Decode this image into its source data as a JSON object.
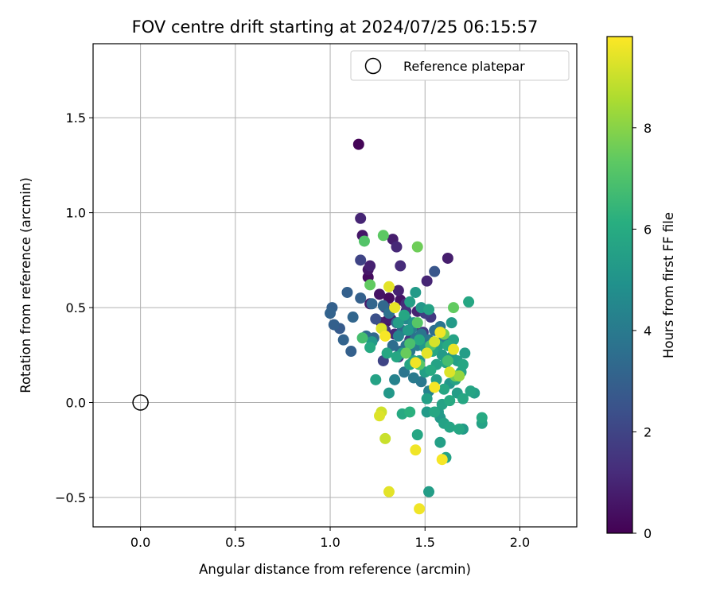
{
  "chart_data": {
    "type": "scatter",
    "title": "FOV centre drift starting at 2024/07/25 06:15:57",
    "xlabel": "Angular distance from reference (arcmin)",
    "ylabel": "Rotation from reference (arcmin)",
    "xlim": [
      -0.25,
      2.3
    ],
    "ylim": [
      -0.655,
      1.89
    ],
    "xticks": [
      0.0,
      0.5,
      1.0,
      1.5,
      2.0
    ],
    "xtick_labels": [
      "0.0",
      "0.5",
      "1.0",
      "1.5",
      "2.0"
    ],
    "yticks": [
      -0.5,
      0.0,
      0.5,
      1.0,
      1.5
    ],
    "ytick_labels": [
      "−0.5",
      "0.0",
      "0.5",
      "1.0",
      "1.5"
    ],
    "grid": true,
    "legend": {
      "placement": "top-right",
      "entries": [
        "Reference platepar"
      ]
    },
    "colorbar": {
      "label": "Hours from first FF file",
      "colormap": "viridis",
      "range": [
        0,
        9.8
      ],
      "ticks": [
        0,
        2,
        4,
        6,
        8
      ],
      "tick_labels": [
        "0",
        "2",
        "4",
        "6",
        "8"
      ]
    },
    "reference_point": {
      "x": 0.0,
      "y": 0.0
    },
    "series": [
      {
        "points": [
          {
            "x": 1.15,
            "y": 1.36,
            "c": 0.1
          },
          {
            "x": 1.16,
            "y": 0.97,
            "c": 1.0
          },
          {
            "x": 1.17,
            "y": 0.88,
            "c": 0.6
          },
          {
            "x": 1.33,
            "y": 0.86,
            "c": 0.8
          },
          {
            "x": 1.35,
            "y": 0.82,
            "c": 1.1
          },
          {
            "x": 1.16,
            "y": 0.75,
            "c": 2.0
          },
          {
            "x": 1.21,
            "y": 0.72,
            "c": 0.9
          },
          {
            "x": 1.2,
            "y": 0.7,
            "c": 0.6
          },
          {
            "x": 1.37,
            "y": 0.72,
            "c": 1.2
          },
          {
            "x": 1.2,
            "y": 0.66,
            "c": 0.3
          },
          {
            "x": 1.51,
            "y": 0.64,
            "c": 1.0
          },
          {
            "x": 1.62,
            "y": 0.76,
            "c": 0.8
          },
          {
            "x": 1.55,
            "y": 0.69,
            "c": 2.6
          },
          {
            "x": 1.26,
            "y": 0.57,
            "c": 0.5
          },
          {
            "x": 1.36,
            "y": 0.59,
            "c": 0.9
          },
          {
            "x": 1.31,
            "y": 0.55,
            "c": 0.3
          },
          {
            "x": 1.21,
            "y": 0.52,
            "c": 0.7
          },
          {
            "x": 1.29,
            "y": 0.5,
            "c": 1.5
          },
          {
            "x": 1.37,
            "y": 0.54,
            "c": 0.5
          },
          {
            "x": 1.4,
            "y": 0.52,
            "c": 1.2
          },
          {
            "x": 1.3,
            "y": 0.43,
            "c": 0.5
          },
          {
            "x": 1.32,
            "y": 0.44,
            "c": 0.8
          },
          {
            "x": 1.4,
            "y": 0.48,
            "c": 1.4
          },
          {
            "x": 1.46,
            "y": 0.48,
            "c": 0.9
          },
          {
            "x": 1.44,
            "y": 0.4,
            "c": 1.3
          },
          {
            "x": 1.5,
            "y": 0.47,
            "c": 1.8
          },
          {
            "x": 1.53,
            "y": 0.45,
            "c": 1.6
          },
          {
            "x": 1.27,
            "y": 0.42,
            "c": 0.8
          },
          {
            "x": 1.24,
            "y": 0.44,
            "c": 2.4
          },
          {
            "x": 1.29,
            "y": 0.38,
            "c": 1.4
          },
          {
            "x": 1.34,
            "y": 0.36,
            "c": 1.1
          },
          {
            "x": 1.42,
            "y": 0.33,
            "c": 1.6
          },
          {
            "x": 1.36,
            "y": 0.24,
            "c": 1.5
          },
          {
            "x": 1.28,
            "y": 0.22,
            "c": 2.0
          },
          {
            "x": 1.49,
            "y": 0.37,
            "c": 1.7
          },
          {
            "x": 1.01,
            "y": 0.5,
            "c": 3.0
          },
          {
            "x": 1.0,
            "y": 0.47,
            "c": 3.1
          },
          {
            "x": 1.09,
            "y": 0.58,
            "c": 3.0
          },
          {
            "x": 1.02,
            "y": 0.41,
            "c": 3.0
          },
          {
            "x": 1.05,
            "y": 0.39,
            "c": 2.8
          },
          {
            "x": 1.07,
            "y": 0.33,
            "c": 3.1
          },
          {
            "x": 1.11,
            "y": 0.27,
            "c": 3.0
          },
          {
            "x": 1.12,
            "y": 0.45,
            "c": 3.2
          },
          {
            "x": 1.16,
            "y": 0.55,
            "c": 3.0
          },
          {
            "x": 1.22,
            "y": 0.52,
            "c": 3.2
          },
          {
            "x": 1.19,
            "y": 0.35,
            "c": 3.4
          },
          {
            "x": 1.23,
            "y": 0.34,
            "c": 3.3
          },
          {
            "x": 1.28,
            "y": 0.51,
            "c": 3.3
          },
          {
            "x": 1.31,
            "y": 0.47,
            "c": 3.6
          },
          {
            "x": 1.35,
            "y": 0.42,
            "c": 3.4
          },
          {
            "x": 1.38,
            "y": 0.38,
            "c": 3.3
          },
          {
            "x": 1.33,
            "y": 0.3,
            "c": 3.5
          },
          {
            "x": 1.37,
            "y": 0.27,
            "c": 3.2
          },
          {
            "x": 1.4,
            "y": 0.3,
            "c": 3.7
          },
          {
            "x": 1.42,
            "y": 0.27,
            "c": 3.9
          },
          {
            "x": 1.45,
            "y": 0.34,
            "c": 3.6
          },
          {
            "x": 1.48,
            "y": 0.36,
            "c": 3.8
          },
          {
            "x": 1.52,
            "y": 0.33,
            "c": 3.9
          },
          {
            "x": 1.55,
            "y": 0.38,
            "c": 3.5
          },
          {
            "x": 1.58,
            "y": 0.4,
            "c": 3.8
          },
          {
            "x": 1.6,
            "y": 0.34,
            "c": 4.2
          },
          {
            "x": 1.46,
            "y": 0.3,
            "c": 4.2
          },
          {
            "x": 1.39,
            "y": 0.16,
            "c": 3.8
          },
          {
            "x": 1.44,
            "y": 0.13,
            "c": 4.0
          },
          {
            "x": 1.48,
            "y": 0.11,
            "c": 3.9
          },
          {
            "x": 1.52,
            "y": 0.06,
            "c": 4.3
          },
          {
            "x": 1.34,
            "y": 0.12,
            "c": 4.3
          },
          {
            "x": 1.36,
            "y": 0.35,
            "c": 4.4
          },
          {
            "x": 1.43,
            "y": 0.39,
            "c": 4.1
          },
          {
            "x": 1.4,
            "y": 0.44,
            "c": 4.6
          },
          {
            "x": 1.45,
            "y": 0.58,
            "c": 5.3
          },
          {
            "x": 1.42,
            "y": 0.53,
            "c": 5.5
          },
          {
            "x": 1.48,
            "y": 0.5,
            "c": 5.2
          },
          {
            "x": 1.52,
            "y": 0.49,
            "c": 5.6
          },
          {
            "x": 1.39,
            "y": 0.46,
            "c": 5.8
          },
          {
            "x": 1.36,
            "y": 0.42,
            "c": 5.4
          },
          {
            "x": 1.44,
            "y": 0.42,
            "c": 5.0
          },
          {
            "x": 1.41,
            "y": 0.38,
            "c": 5.3
          },
          {
            "x": 1.47,
            "y": 0.33,
            "c": 5.9
          },
          {
            "x": 1.5,
            "y": 0.29,
            "c": 5.2
          },
          {
            "x": 1.54,
            "y": 0.27,
            "c": 5.8
          },
          {
            "x": 1.57,
            "y": 0.3,
            "c": 5.5
          },
          {
            "x": 1.59,
            "y": 0.25,
            "c": 5.3
          },
          {
            "x": 1.56,
            "y": 0.2,
            "c": 5.6
          },
          {
            "x": 1.61,
            "y": 0.21,
            "c": 5.8
          },
          {
            "x": 1.64,
            "y": 0.24,
            "c": 5.1
          },
          {
            "x": 1.67,
            "y": 0.22,
            "c": 5.5
          },
          {
            "x": 1.7,
            "y": 0.2,
            "c": 5.8
          },
          {
            "x": 1.71,
            "y": 0.26,
            "c": 5.4
          },
          {
            "x": 1.69,
            "y": 0.16,
            "c": 5.7
          },
          {
            "x": 1.66,
            "y": 0.12,
            "c": 5.6
          },
          {
            "x": 1.63,
            "y": 0.1,
            "c": 5.1
          },
          {
            "x": 1.6,
            "y": 0.07,
            "c": 5.8
          },
          {
            "x": 1.56,
            "y": 0.12,
            "c": 5.4
          },
          {
            "x": 1.53,
            "y": 0.17,
            "c": 5.9
          },
          {
            "x": 1.5,
            "y": 0.16,
            "c": 5.5
          },
          {
            "x": 1.47,
            "y": 0.22,
            "c": 5.2
          },
          {
            "x": 1.44,
            "y": 0.22,
            "c": 5.6
          },
          {
            "x": 1.42,
            "y": 0.2,
            "c": 5.7
          },
          {
            "x": 1.38,
            "y": 0.26,
            "c": 5.4
          },
          {
            "x": 1.35,
            "y": 0.24,
            "c": 5.8
          },
          {
            "x": 1.73,
            "y": 0.53,
            "c": 5.8
          },
          {
            "x": 1.64,
            "y": 0.42,
            "c": 5.3
          },
          {
            "x": 1.65,
            "y": 0.33,
            "c": 5.6
          },
          {
            "x": 1.62,
            "y": 0.3,
            "c": 5.9
          },
          {
            "x": 1.74,
            "y": 0.06,
            "c": 5.7
          },
          {
            "x": 1.76,
            "y": 0.05,
            "c": 5.5
          },
          {
            "x": 1.7,
            "y": 0.02,
            "c": 5.8
          },
          {
            "x": 1.67,
            "y": 0.05,
            "c": 5.4
          },
          {
            "x": 1.63,
            "y": 0.01,
            "c": 5.9
          },
          {
            "x": 1.59,
            "y": -0.01,
            "c": 5.6
          },
          {
            "x": 1.57,
            "y": -0.05,
            "c": 5.3
          },
          {
            "x": 1.51,
            "y": 0.02,
            "c": 5.5
          },
          {
            "x": 1.55,
            "y": -0.05,
            "c": 5.8
          },
          {
            "x": 1.58,
            "y": -0.08,
            "c": 5.2
          },
          {
            "x": 1.6,
            "y": -0.11,
            "c": 5.6
          },
          {
            "x": 1.8,
            "y": -0.08,
            "c": 5.9
          },
          {
            "x": 1.8,
            "y": -0.11,
            "c": 5.6
          },
          {
            "x": 1.68,
            "y": -0.14,
            "c": 5.8
          },
          {
            "x": 1.7,
            "y": -0.14,
            "c": 5.3
          },
          {
            "x": 1.63,
            "y": -0.13,
            "c": 5.7
          },
          {
            "x": 1.58,
            "y": -0.21,
            "c": 5.5
          },
          {
            "x": 1.61,
            "y": -0.29,
            "c": 5.6
          },
          {
            "x": 1.52,
            "y": -0.47,
            "c": 5.4
          },
          {
            "x": 1.46,
            "y": -0.17,
            "c": 5.8
          },
          {
            "x": 1.51,
            "y": -0.05,
            "c": 5.3
          },
          {
            "x": 1.38,
            "y": -0.06,
            "c": 5.9
          },
          {
            "x": 1.42,
            "y": -0.05,
            "c": 6.2
          },
          {
            "x": 1.31,
            "y": 0.05,
            "c": 5.2
          },
          {
            "x": 1.24,
            "y": 0.12,
            "c": 5.6
          },
          {
            "x": 1.21,
            "y": 0.29,
            "c": 5.9
          },
          {
            "x": 1.22,
            "y": 0.32,
            "c": 5.3
          },
          {
            "x": 1.3,
            "y": 0.26,
            "c": 5.8
          },
          {
            "x": 1.17,
            "y": 0.34,
            "c": 6.8
          },
          {
            "x": 1.18,
            "y": 0.85,
            "c": 7.1
          },
          {
            "x": 1.28,
            "y": 0.88,
            "c": 7.3
          },
          {
            "x": 1.46,
            "y": 0.82,
            "c": 7.6
          },
          {
            "x": 1.21,
            "y": 0.62,
            "c": 7.4
          },
          {
            "x": 1.46,
            "y": 0.42,
            "c": 7.2
          },
          {
            "x": 1.42,
            "y": 0.31,
            "c": 6.9
          },
          {
            "x": 1.4,
            "y": 0.26,
            "c": 7.5
          },
          {
            "x": 1.65,
            "y": 0.5,
            "c": 7.4
          },
          {
            "x": 1.6,
            "y": 0.36,
            "c": 7.7
          },
          {
            "x": 1.53,
            "y": 0.3,
            "c": 7.1
          },
          {
            "x": 1.62,
            "y": 0.22,
            "c": 6.8
          },
          {
            "x": 1.66,
            "y": 0.14,
            "c": 7.6
          },
          {
            "x": 1.68,
            "y": 0.14,
            "c": 8.2
          },
          {
            "x": 1.47,
            "y": 0.2,
            "c": 7.2
          },
          {
            "x": 1.31,
            "y": 0.61,
            "c": 9.4
          },
          {
            "x": 1.34,
            "y": 0.5,
            "c": 9.5
          },
          {
            "x": 1.27,
            "y": 0.39,
            "c": 9.3
          },
          {
            "x": 1.29,
            "y": 0.35,
            "c": 9.7
          },
          {
            "x": 1.58,
            "y": 0.37,
            "c": 9.6
          },
          {
            "x": 1.55,
            "y": 0.32,
            "c": 9.2
          },
          {
            "x": 1.65,
            "y": 0.28,
            "c": 9.5
          },
          {
            "x": 1.51,
            "y": 0.26,
            "c": 9.4
          },
          {
            "x": 1.45,
            "y": 0.21,
            "c": 9.6
          },
          {
            "x": 1.63,
            "y": 0.16,
            "c": 9.3
          },
          {
            "x": 1.55,
            "y": 0.08,
            "c": 9.7
          },
          {
            "x": 1.27,
            "y": -0.05,
            "c": 9.1
          },
          {
            "x": 1.26,
            "y": -0.07,
            "c": 9.3
          },
          {
            "x": 1.29,
            "y": -0.19,
            "c": 9.0
          },
          {
            "x": 1.45,
            "y": -0.25,
            "c": 9.6
          },
          {
            "x": 1.59,
            "y": -0.3,
            "c": 9.7
          },
          {
            "x": 1.31,
            "y": -0.47,
            "c": 9.4
          },
          {
            "x": 1.47,
            "y": -0.56,
            "c": 9.6
          }
        ]
      }
    ]
  }
}
